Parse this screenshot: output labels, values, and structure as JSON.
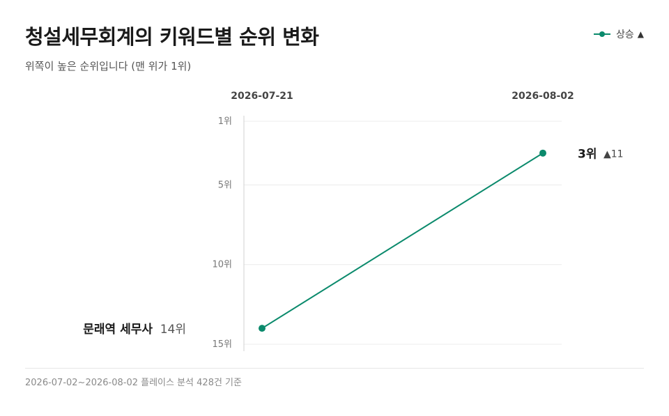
{
  "header": {
    "title": "청설세무회계의 키워드별 순위 변화",
    "subtitle": "위쪽이 높은 순위입니다 (맨 위가 1위)"
  },
  "legend": {
    "label": "상승",
    "arrow": "▲",
    "color": "#0b8a6c"
  },
  "chart_data": {
    "type": "line",
    "x": [
      "2026-07-21",
      "2026-08-02"
    ],
    "y_ticks": [
      1,
      5,
      10,
      15
    ],
    "y_tick_suffix": "위",
    "ylim": [
      1,
      15
    ],
    "y_inverted": true,
    "grid": true,
    "series": [
      {
        "name": "문래역 세무사",
        "values": [
          14,
          3
        ],
        "start_label": "14위",
        "end_label": "3위",
        "change_label": "▲11",
        "color": "#0b8a6c"
      }
    ]
  },
  "footer": {
    "text": "2026-07-02~2026-08-02 플레이스 분석 428건 기준"
  }
}
